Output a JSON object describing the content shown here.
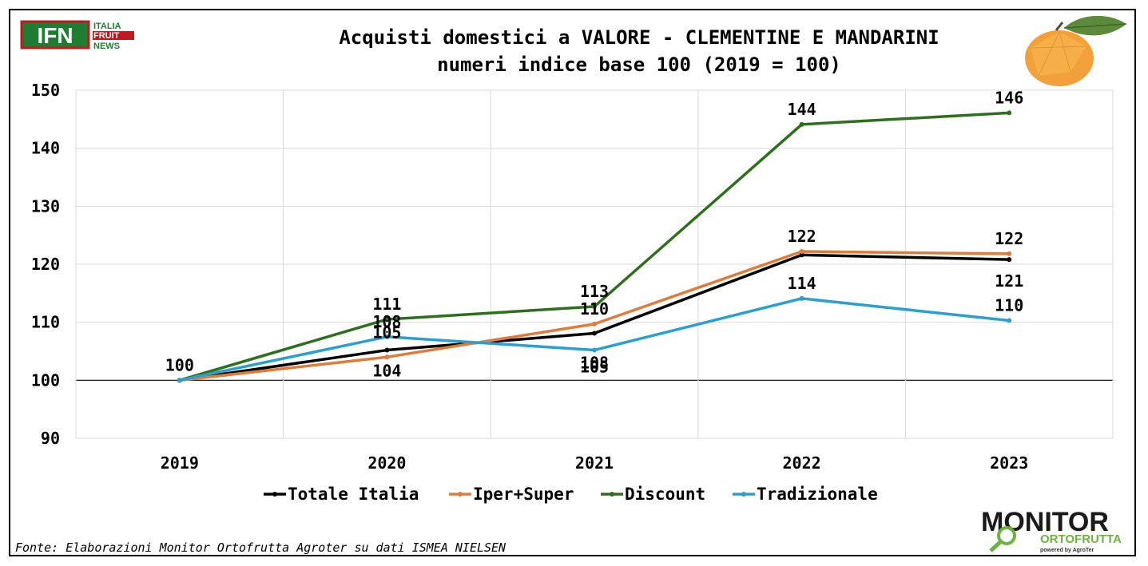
{
  "brand": {
    "ifn_letters": "IFN",
    "ifn_line1": "ITALIA",
    "ifn_line2": "FRUIT",
    "ifn_line3": "NEWS",
    "monitor_word": "MONITOR",
    "monitor_sub": "ORTOFRUTTA",
    "monitor_powered": "powered by AgroTer"
  },
  "source_note": "Fonte: Elaborazioni Monitor Ortofrutta Agroter su dati ISMEA NIELSEN",
  "colors": {
    "Totale Italia": "#000000",
    "Iper+Super": "#E07B39",
    "Discount": "#2E6F1E",
    "Tradizionale": "#2AA0D0"
  },
  "chart_data": {
    "type": "line",
    "title_line1": "Acquisti domestici a VALORE - CLEMENTINE E MANDARINI",
    "title_line2": "numeri indice base 100 (2019 = 100)",
    "categories": [
      "2019",
      "2020",
      "2021",
      "2022",
      "2023"
    ],
    "ylim": [
      90,
      150
    ],
    "yticks": [
      90,
      100,
      110,
      120,
      130,
      140,
      150
    ],
    "grid": true,
    "legend_position": "bottom",
    "series": [
      {
        "name": "Totale Italia",
        "values": [
          100,
          105.2,
          108.1,
          121.6,
          120.8
        ],
        "labels": [
          "",
          "105",
          "108",
          "",
          "121"
        ]
      },
      {
        "name": "Iper+Super",
        "values": [
          100,
          104.0,
          109.7,
          122.2,
          121.8
        ],
        "labels": [
          "",
          "104",
          "110",
          "122",
          "122"
        ]
      },
      {
        "name": "Discount",
        "values": [
          100,
          110.5,
          112.7,
          144.1,
          146.1
        ],
        "labels": [
          "",
          "111",
          "113",
          "144",
          "146"
        ]
      },
      {
        "name": "Tradizionale",
        "values": [
          100,
          107.5,
          105.2,
          114.1,
          110.3
        ],
        "labels": [
          "100",
          "108",
          "105",
          "114",
          "110"
        ]
      }
    ]
  }
}
